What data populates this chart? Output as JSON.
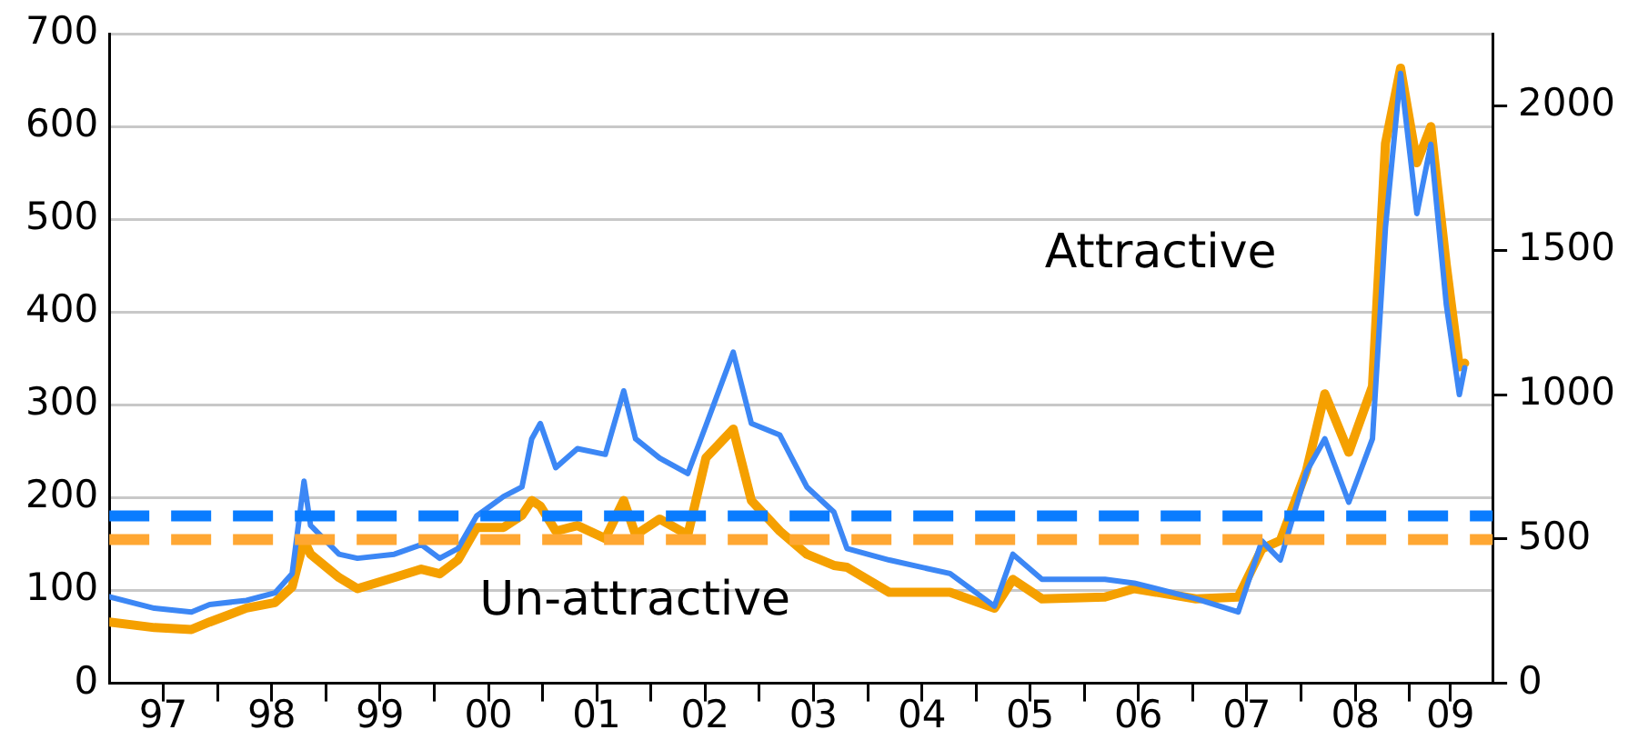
{
  "chart_data": {
    "type": "line",
    "x": [
      "1997-01-01",
      "1997-06-02",
      "1997-10-05",
      "1997-12-05",
      "1998-04-08",
      "1998-07-13",
      "1998-09-09",
      "1998-10-19",
      "1998-11-10",
      "1999-02-14",
      "1999-04-17",
      "1999-08-19",
      "1999-11-18",
      "2000-01-19",
      "2000-03-21",
      "2000-05-23",
      "2000-08-22",
      "2000-10-23",
      "2000-11-25",
      "2000-12-24",
      "2001-02-14",
      "2001-04-28",
      "2001-07-31",
      "2001-10-01",
      "2001-11-10",
      "2002-01-30",
      "2002-05-05",
      "2002-07-05",
      "2002-10-05",
      "2002-12-05",
      "2003-03-11",
      "2003-06-10",
      "2003-09-09",
      "2003-10-23",
      "2004-03-14",
      "2004-10-05",
      "2005-03-04",
      "2005-05-05",
      "2005-08-11",
      "2006-03-11",
      "2006-06-18",
      "2007-01-12",
      "2007-06-03",
      "2007-08-22",
      "2007-10-23",
      "2008-01-19",
      "2008-03-21",
      "2008-06-10",
      "2008-08-29",
      "2008-10-12",
      "2008-12-02",
      "2009-01-26",
      "2009-03-14",
      "2009-05-05",
      "2009-06-18",
      "2009-07-06"
    ],
    "series": [
      {
        "color": "#f5a000",
        "values": [
          66,
          60,
          58,
          66,
          81,
          87,
          104,
          154,
          139,
          114,
          102,
          114,
          123,
          118,
          133,
          168,
          168,
          181,
          197,
          191,
          164,
          170,
          156,
          197,
          160,
          177,
          160,
          243,
          274,
          197,
          164,
          139,
          127,
          125,
          98,
          98,
          81,
          112,
          91,
          93,
          102,
          91,
          93,
          145,
          154,
          229,
          312,
          249,
          320,
          582,
          663,
          561,
          600,
          451,
          341,
          345
        ]
      },
      {
        "color": "#3c87f5",
        "axis": "y2",
        "values": [
          300,
          260,
          247,
          273,
          287,
          313,
          380,
          700,
          547,
          447,
          433,
          447,
          480,
          433,
          467,
          580,
          647,
          680,
          847,
          900,
          747,
          813,
          793,
          1013,
          847,
          780,
          727,
          893,
          1147,
          900,
          860,
          680,
          593,
          467,
          427,
          380,
          267,
          447,
          360,
          360,
          347,
          293,
          247,
          493,
          427,
          733,
          847,
          627,
          847,
          1580,
          2113,
          1627,
          1867,
          1313,
          1000,
          1093
        ]
      }
    ],
    "xlim": [
      "1997-01-01",
      "2009-10-08"
    ],
    "xticks": [
      {
        "value": "1997-07-02",
        "label": "97"
      },
      {
        "value": "1998-01-01",
        "label": null
      },
      {
        "value": "1998-07-02",
        "label": "98"
      },
      {
        "value": "1999-01-01",
        "label": null
      },
      {
        "value": "1999-07-02",
        "label": "99"
      },
      {
        "value": "2000-01-01",
        "label": null
      },
      {
        "value": "2000-07-02",
        "label": "00"
      },
      {
        "value": "2001-01-01",
        "label": null
      },
      {
        "value": "2001-07-02",
        "label": "01"
      },
      {
        "value": "2002-01-01",
        "label": null
      },
      {
        "value": "2002-07-02",
        "label": "02"
      },
      {
        "value": "2003-01-01",
        "label": null
      },
      {
        "value": "2003-07-02",
        "label": "03"
      },
      {
        "value": "2004-01-01",
        "label": null
      },
      {
        "value": "2004-07-02",
        "label": "04"
      },
      {
        "value": "2005-01-01",
        "label": null
      },
      {
        "value": "2005-07-02",
        "label": "05"
      },
      {
        "value": "2006-01-01",
        "label": null
      },
      {
        "value": "2006-07-02",
        "label": "06"
      },
      {
        "value": "2007-01-01",
        "label": null
      },
      {
        "value": "2007-07-02",
        "label": "07"
      },
      {
        "value": "2008-01-01",
        "label": null
      },
      {
        "value": "2008-07-02",
        "label": "08"
      },
      {
        "value": "2009-01-01",
        "label": null
      },
      {
        "value": "2009-05-19",
        "label": "09"
      }
    ],
    "ylim": [
      0,
      700
    ],
    "yticks": [
      0,
      100,
      200,
      300,
      400,
      500,
      600,
      700
    ],
    "y2lim": [
      0,
      2250
    ],
    "y2ticks": [
      0,
      500,
      1000,
      1500,
      2000
    ],
    "ref_lines": [
      {
        "axis": "y2",
        "value": 580,
        "color": "#0a7cff",
        "line_style": "dashed"
      },
      {
        "axis": "y",
        "value": 155,
        "color": "#ffa733",
        "line_style": "dashed"
      }
    ],
    "annotations": [
      "Attractive",
      "Un-attractive"
    ],
    "grid": "y"
  }
}
